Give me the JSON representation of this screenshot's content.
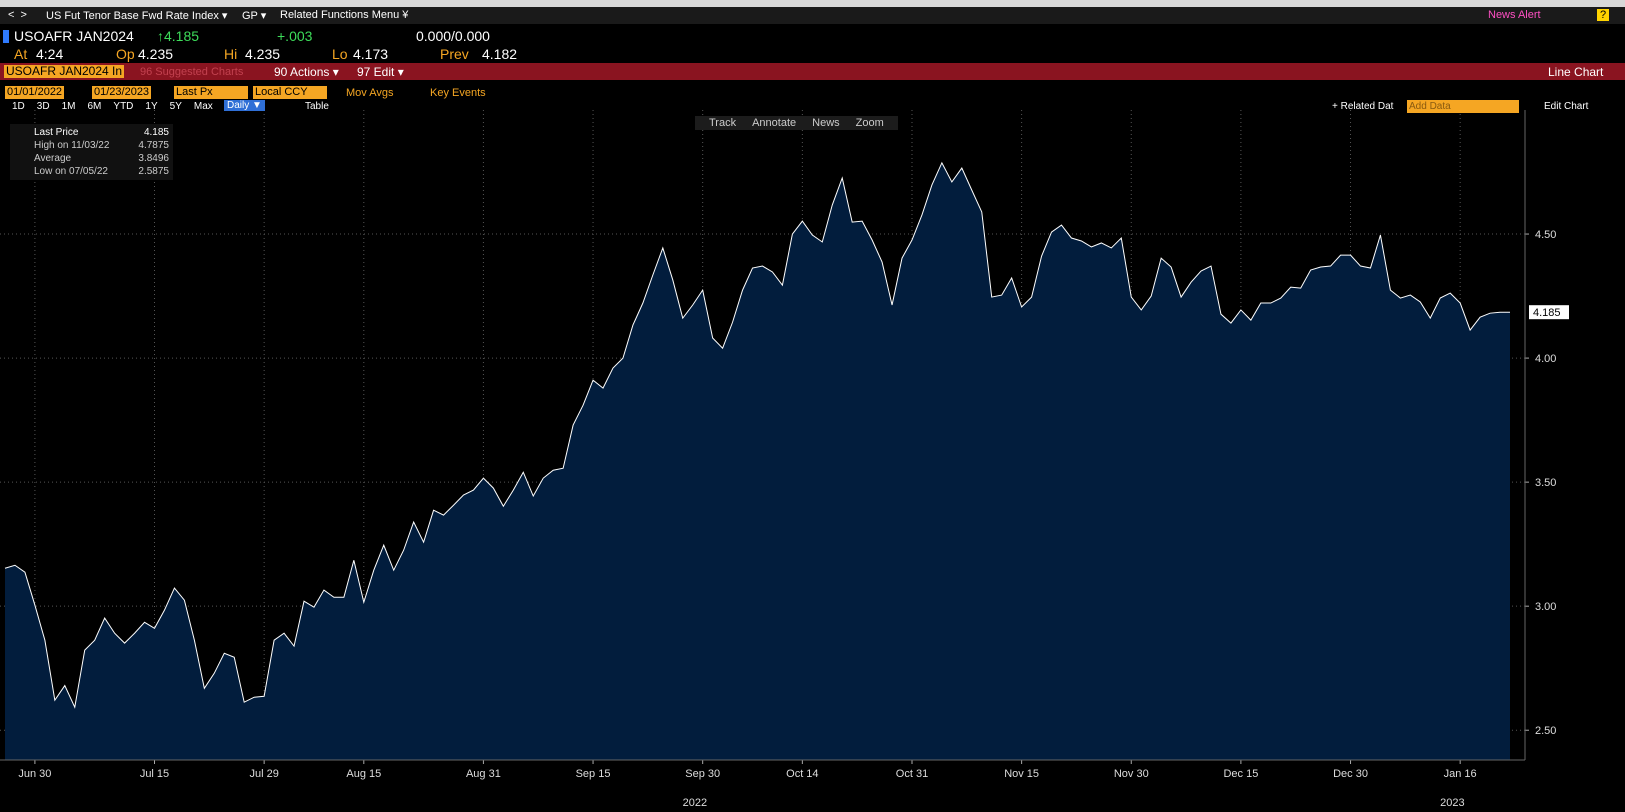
{
  "topbar": {
    "security_menu": "US Fut Tenor Base Fwd Rate Index ▾",
    "gp": "GP ▾",
    "related": "Related Functions Menu ¥",
    "news_alert": "News Alert"
  },
  "quote": {
    "ticker": "USOAFR JAN2024",
    "last": "↑4.185",
    "change": "+.003",
    "bid_ask": "0.000/0.000",
    "at_label": "At",
    "at": "4:24",
    "op_label": "Op",
    "op": "4.235",
    "hi_label": "Hi",
    "hi": "4.235",
    "lo_label": "Lo",
    "lo": "4.173",
    "prev_label": "Prev",
    "prev": "4.182"
  },
  "menubar": {
    "ticker_field": "USOAFR JAN2024 In",
    "suggested": "96 Suggested Charts",
    "actions": "90 Actions ▾",
    "edit": "97 Edit ▾",
    "chart_type": "Line Chart"
  },
  "controls": {
    "start": "01/01/2022",
    "end": "01/23/2023",
    "field": "Last Px",
    "ccy": "Local CCY",
    "mov_avgs": "Mov Avgs",
    "key_events": "Key Events",
    "ranges": [
      "1D",
      "3D",
      "1M",
      "6M",
      "YTD",
      "1Y",
      "5Y",
      "Max"
    ],
    "period": "Daily ▼",
    "table": "Table",
    "related_data": "+ Related Dat",
    "add_data": "Add Data",
    "edit_chart": "Edit Chart"
  },
  "toolbar": [
    "Track",
    "Annotate",
    "News",
    "Zoom"
  ],
  "legend": [
    {
      "label": "Last Price",
      "value": "4.185"
    },
    {
      "label": "High on 11/03/22",
      "value": "4.7875"
    },
    {
      "label": "Average",
      "value": "3.8496"
    },
    {
      "label": "Low on 07/05/22",
      "value": "2.5875"
    }
  ],
  "chart_data": {
    "type": "area",
    "color": "#ffffff",
    "fill": "#021d3d",
    "last_value_label": "4.185",
    "year_labels": [
      "2022",
      "2023"
    ],
    "categories": [
      null,
      null,
      null,
      "Jun 30",
      null,
      null,
      null,
      null,
      null,
      null,
      null,
      null,
      null,
      null,
      null,
      "Jul 15",
      null,
      null,
      null,
      null,
      null,
      null,
      null,
      null,
      null,
      null,
      "Jul 29",
      null,
      null,
      null,
      null,
      null,
      null,
      null,
      null,
      null,
      "Aug 15",
      null,
      null,
      null,
      null,
      null,
      null,
      null,
      null,
      null,
      null,
      null,
      "Aug 31",
      null,
      null,
      null,
      null,
      null,
      null,
      null,
      null,
      null,
      null,
      "Sep 15",
      null,
      null,
      null,
      null,
      null,
      null,
      null,
      null,
      null,
      null,
      "Sep 30",
      null,
      null,
      null,
      null,
      null,
      null,
      null,
      null,
      null,
      "Oct 14",
      null,
      null,
      null,
      null,
      null,
      null,
      null,
      null,
      null,
      null,
      "Oct 31",
      null,
      null,
      null,
      null,
      null,
      null,
      null,
      null,
      null,
      null,
      "Nov 15",
      null,
      null,
      null,
      null,
      null,
      null,
      null,
      null,
      null,
      null,
      "Nov 30",
      null,
      null,
      null,
      null,
      null,
      null,
      null,
      null,
      null,
      null,
      "Dec 15",
      null,
      null,
      null,
      null,
      null,
      null,
      null,
      null,
      null,
      null,
      "Dec 30",
      null,
      null,
      null,
      null,
      null,
      null,
      null,
      null,
      null,
      null,
      "Jan 16",
      null,
      null,
      null,
      null,
      null
    ],
    "values": [
      3.153,
      3.165,
      3.137,
      3.004,
      2.863,
      2.621,
      2.68,
      2.593,
      2.823,
      2.863,
      2.952,
      2.891,
      2.851,
      2.891,
      2.935,
      2.911,
      2.984,
      3.073,
      3.024,
      2.863,
      2.669,
      2.73,
      2.81,
      2.794,
      2.613,
      2.633,
      2.637,
      2.863,
      2.891,
      2.839,
      3.02,
      2.996,
      3.065,
      3.036,
      3.036,
      3.185,
      3.016,
      3.145,
      3.246,
      3.145,
      3.226,
      3.339,
      3.258,
      3.387,
      3.367,
      3.407,
      3.448,
      3.468,
      3.516,
      3.476,
      3.403,
      3.468,
      3.54,
      3.444,
      3.516,
      3.548,
      3.556,
      3.73,
      3.81,
      3.911,
      3.879,
      3.96,
      4.0,
      4.133,
      4.222,
      4.335,
      4.444,
      4.315,
      4.161,
      4.214,
      4.274,
      4.081,
      4.04,
      4.145,
      4.274,
      4.363,
      4.371,
      4.347,
      4.294,
      4.5,
      4.552,
      4.496,
      4.468,
      4.617,
      4.726,
      4.548,
      4.552,
      4.476,
      4.387,
      4.214,
      4.403,
      4.476,
      4.577,
      4.698,
      4.787,
      4.71,
      4.766,
      4.677,
      4.589,
      4.246,
      4.254,
      4.323,
      4.206,
      4.246,
      4.411,
      4.508,
      4.536,
      4.484,
      4.472,
      4.448,
      4.464,
      4.444,
      4.484,
      4.246,
      4.194,
      4.25,
      4.403,
      4.367,
      4.246,
      4.306,
      4.351,
      4.371,
      4.177,
      4.141,
      4.194,
      4.153,
      4.222,
      4.222,
      4.242,
      4.286,
      4.282,
      4.355,
      4.367,
      4.371,
      4.415,
      4.415,
      4.371,
      4.363,
      4.496,
      4.274,
      4.242,
      4.254,
      4.226,
      4.161,
      4.242,
      4.262,
      4.222,
      4.113,
      4.165,
      4.181,
      4.185,
      4.185
    ],
    "ylim": [
      2.38,
      5.0
    ],
    "yticks": [
      {
        "value": 2.5,
        "label": "2.50"
      },
      {
        "value": 3.0,
        "label": "3.00"
      },
      {
        "value": 3.5,
        "label": "3.50"
      },
      {
        "value": 4.0,
        "label": "4.00"
      },
      {
        "value": 4.5,
        "label": "4.50"
      }
    ],
    "grid": true
  }
}
